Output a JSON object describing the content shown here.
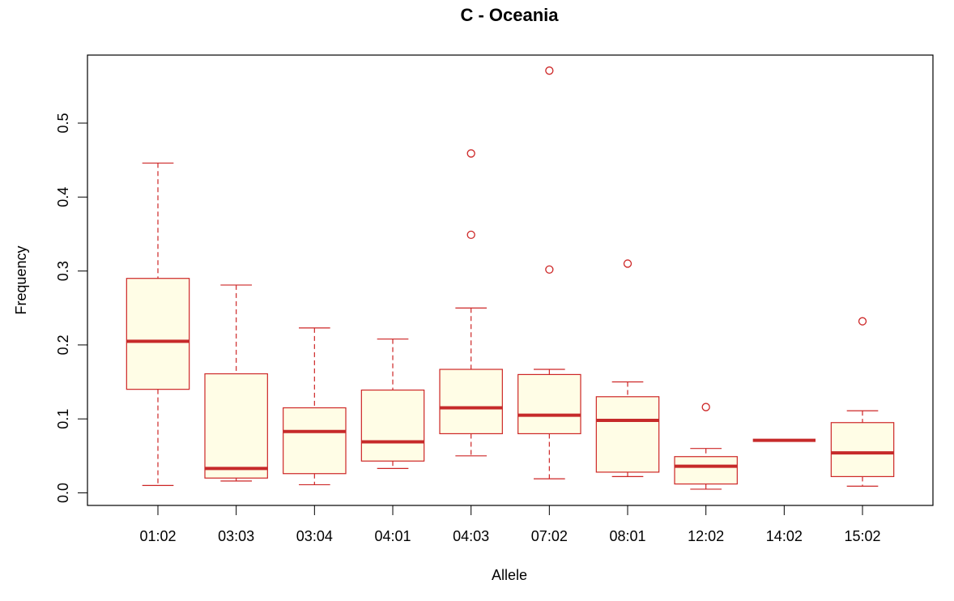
{
  "chart_data": {
    "type": "boxplot",
    "title": "C - Oceania",
    "xlabel": "Allele",
    "ylabel": "Frequency",
    "ylim": [
      -0.017,
      0.592
    ],
    "yticks": [
      0.0,
      0.1,
      0.2,
      0.3,
      0.4,
      0.5
    ],
    "ytick_labels": [
      "0.0",
      "0.1",
      "0.2",
      "0.3",
      "0.4",
      "0.5"
    ],
    "grid": false,
    "colors": {
      "border": "#cd2626",
      "fill": "#fffde6",
      "median": "#c62a2a"
    },
    "boxes": [
      {
        "category": "01:02",
        "whisker_low": 0.01,
        "q1": 0.14,
        "median": 0.205,
        "q3": 0.29,
        "whisker_high": 0.446,
        "outliers": []
      },
      {
        "category": "03:03",
        "whisker_low": 0.016,
        "q1": 0.02,
        "median": 0.033,
        "q3": 0.161,
        "whisker_high": 0.281,
        "outliers": []
      },
      {
        "category": "03:04",
        "whisker_low": 0.011,
        "q1": 0.026,
        "median": 0.083,
        "q3": 0.115,
        "whisker_high": 0.223,
        "outliers": []
      },
      {
        "category": "04:01",
        "whisker_low": 0.033,
        "q1": 0.043,
        "median": 0.069,
        "q3": 0.139,
        "whisker_high": 0.208,
        "outliers": []
      },
      {
        "category": "04:03",
        "whisker_low": 0.05,
        "q1": 0.08,
        "median": 0.115,
        "q3": 0.167,
        "whisker_high": 0.25,
        "outliers": [
          0.349,
          0.459
        ]
      },
      {
        "category": "07:02",
        "whisker_low": 0.019,
        "q1": 0.08,
        "median": 0.105,
        "q3": 0.16,
        "whisker_high": 0.167,
        "outliers": [
          0.302,
          0.571
        ]
      },
      {
        "category": "08:01",
        "whisker_low": 0.022,
        "q1": 0.028,
        "median": 0.098,
        "q3": 0.13,
        "whisker_high": 0.15,
        "outliers": [
          0.31
        ]
      },
      {
        "category": "12:02",
        "whisker_low": 0.005,
        "q1": 0.012,
        "median": 0.036,
        "q3": 0.049,
        "whisker_high": 0.06,
        "outliers": [
          0.116
        ]
      },
      {
        "category": "14:02",
        "whisker_low": 0.071,
        "q1": 0.071,
        "median": 0.071,
        "q3": 0.071,
        "whisker_high": 0.071,
        "outliers": []
      },
      {
        "category": "15:02",
        "whisker_low": 0.009,
        "q1": 0.022,
        "median": 0.054,
        "q3": 0.095,
        "whisker_high": 0.111,
        "outliers": [
          0.232
        ]
      }
    ]
  }
}
